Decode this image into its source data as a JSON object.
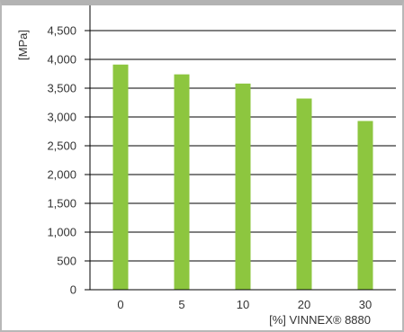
{
  "chart_data": {
    "type": "bar",
    "categories": [
      "0",
      "5",
      "10",
      "20",
      "30"
    ],
    "values": [
      3910,
      3740,
      3580,
      3320,
      2930
    ],
    "title": "",
    "xlabel": "[%] VINNEX® 8880",
    "ylabel": "[MPa]",
    "ylim": [
      0,
      4500
    ],
    "yticks": [
      0,
      500,
      1000,
      1500,
      2000,
      2500,
      3000,
      3500,
      4000,
      4500
    ],
    "ytick_labels": [
      "0",
      "500",
      "1,000",
      "1,500",
      "2,000",
      "2,500",
      "3,000",
      "3,500",
      "4,000",
      "4,500"
    ],
    "grid": true,
    "legend": "none",
    "colors": {
      "bar": "#8dc63f",
      "grid": "#000000",
      "frame": "#b3b3b3",
      "text": "#333333"
    }
  }
}
